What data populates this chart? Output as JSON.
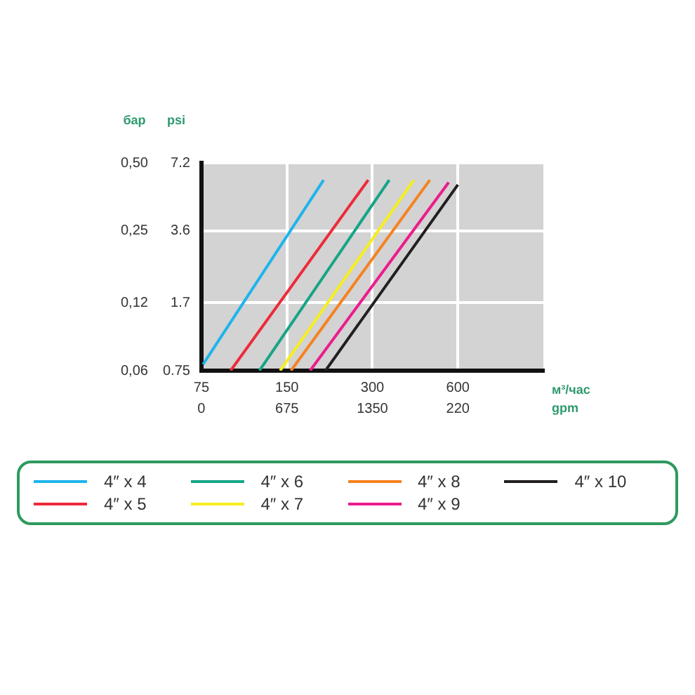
{
  "chart_data": {
    "type": "line",
    "xlabel": "м³/час",
    "x2label": "gpm",
    "ylabel": "бар",
    "y2label": "psi",
    "log": "xy",
    "grid": true,
    "legend": "bottom",
    "marker": "none",
    "line_style": "solid",
    "xlim": [
      75,
      1200
    ],
    "xticks": [
      75,
      150,
      300,
      600
    ],
    "annotations": [
      "0",
      "675",
      "1350",
      "220"
    ],
    "ylim": [
      0.06,
      0.5
    ],
    "yticks": [
      {
        "value": 0.06,
        "label": "0,06"
      },
      {
        "value": 0.12,
        "label": "0,12"
      },
      {
        "value": 0.25,
        "label": "0,25"
      },
      {
        "value": 0.5,
        "label": "0,50"
      }
    ],
    "y2_categories": [
      "7.2",
      "3.6",
      "1.7",
      "0.75"
    ],
    "series": [
      {
        "name": "4″ x 4",
        "color": "#1eb4ec",
        "x": [
          76,
          202
        ],
        "values": [
          0.064,
          0.42
        ]
      },
      {
        "name": "4″ x 5",
        "color": "#ee2a3a",
        "x": [
          95,
          290
        ],
        "values": [
          0.06,
          0.42
        ]
      },
      {
        "name": "4″ x 6",
        "color": "#15a585",
        "x": [
          120,
          344
        ],
        "values": [
          0.06,
          0.42
        ]
      },
      {
        "name": "4″ x 7",
        "color": "#f6ee1e",
        "x": [
          142,
          420
        ],
        "values": [
          0.06,
          0.42
        ]
      },
      {
        "name": "4″ x 8",
        "color": "#f5821f",
        "x": [
          155,
          478
        ],
        "values": [
          0.06,
          0.42
        ]
      },
      {
        "name": "4″ x 9",
        "color": "#ec1c8c",
        "x": [
          181,
          557
        ],
        "values": [
          0.06,
          0.41
        ]
      },
      {
        "name": "4″ x 10",
        "color": "#231f20",
        "x": [
          205,
          600
        ],
        "values": [
          0.06,
          0.4
        ]
      }
    ]
  }
}
